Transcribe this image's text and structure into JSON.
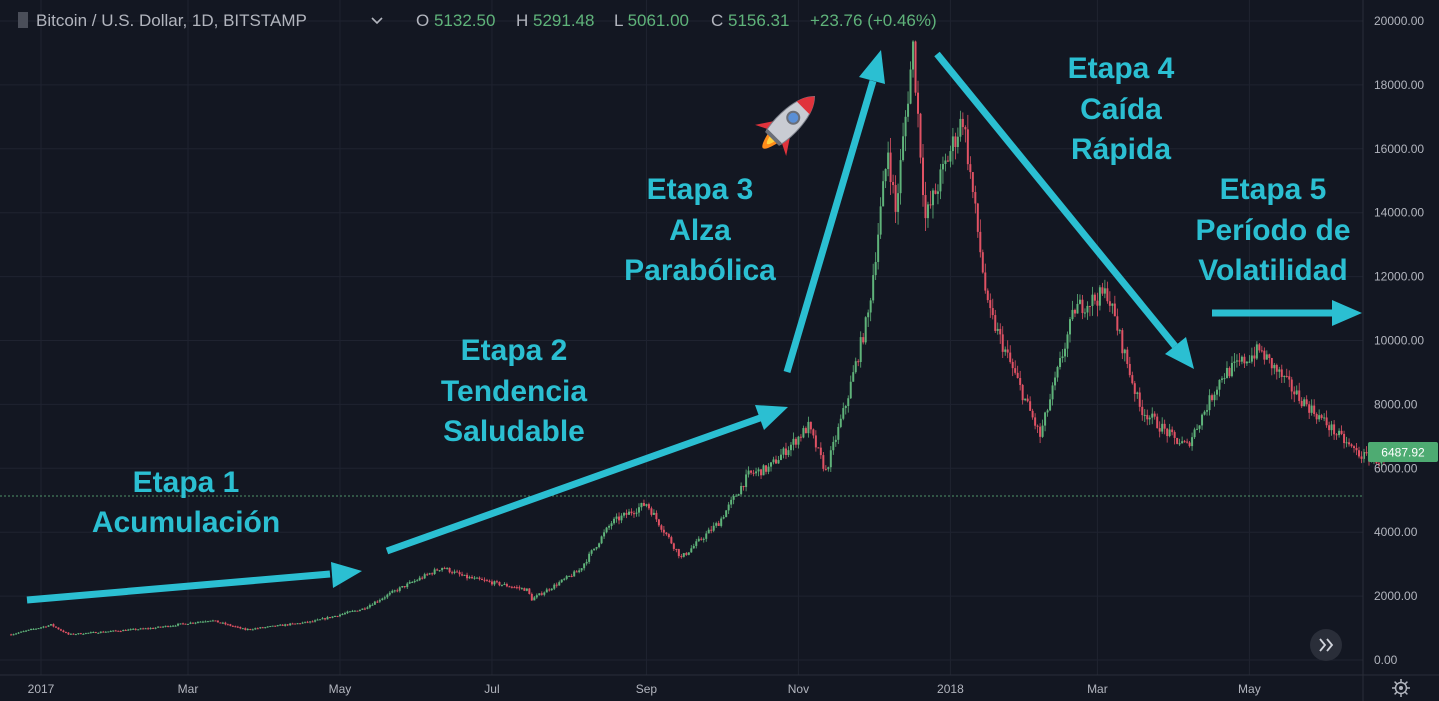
{
  "header": {
    "symbol": "Bitcoin / U.S. Dollar, 1D, BITSTAMP",
    "o_label": "O",
    "o_value": "5132.50",
    "h_label": "H",
    "h_value": "5291.48",
    "l_label": "L",
    "l_value": "5061.00",
    "c_label": "C",
    "c_value": "5156.31",
    "change": "+23.76 (+0.46%)"
  },
  "colors": {
    "background": "#131722",
    "up": "#5fb37a",
    "down": "#e05264",
    "annotation": "#2bbfd2",
    "text": "#b2b5be",
    "price_tag": "#4eab72"
  },
  "chart_data": {
    "type": "line",
    "title": "",
    "xlabel": "",
    "ylabel": "",
    "x_ticks": [
      "2017",
      "Mar",
      "May",
      "Jul",
      "Sep",
      "Nov",
      "2018",
      "Mar",
      "May"
    ],
    "y_ticks": [
      "20000.00",
      "18000.00",
      "16000.00",
      "14000.00",
      "12000.00",
      "10000.00",
      "8000.00",
      "6000.00",
      "4000.00",
      "2000.00",
      "0.00"
    ],
    "ylim": [
      0,
      20000
    ],
    "grid": true,
    "last_price": "6487.92",
    "reference_line": 5132.5,
    "series": [
      {
        "values": [
          {
            "x": "2016-12-20",
            "y": 800
          },
          {
            "x": "2017-01-05",
            "y": 1100
          },
          {
            "x": "2017-01-12",
            "y": 800
          },
          {
            "x": "2017-02-15",
            "y": 1000
          },
          {
            "x": "2017-03-10",
            "y": 1250
          },
          {
            "x": "2017-03-24",
            "y": 950
          },
          {
            "x": "2017-04-20",
            "y": 1200
          },
          {
            "x": "2017-05-10",
            "y": 1600
          },
          {
            "x": "2017-05-24",
            "y": 2200
          },
          {
            "x": "2017-06-11",
            "y": 2900
          },
          {
            "x": "2017-06-20",
            "y": 2600
          },
          {
            "x": "2017-07-15",
            "y": 2200
          },
          {
            "x": "2017-07-17",
            "y": 1900
          },
          {
            "x": "2017-08-05",
            "y": 2800
          },
          {
            "x": "2017-08-18",
            "y": 4300
          },
          {
            "x": "2017-09-01",
            "y": 4900
          },
          {
            "x": "2017-09-15",
            "y": 3200
          },
          {
            "x": "2017-09-30",
            "y": 4300
          },
          {
            "x": "2017-10-12",
            "y": 5800
          },
          {
            "x": "2017-10-20",
            "y": 6000
          },
          {
            "x": "2017-11-05",
            "y": 7300
          },
          {
            "x": "2017-11-12",
            "y": 5900
          },
          {
            "x": "2017-11-20",
            "y": 8000
          },
          {
            "x": "2017-11-29",
            "y": 10800
          },
          {
            "x": "2017-12-07",
            "y": 16000
          },
          {
            "x": "2017-12-10",
            "y": 14000
          },
          {
            "x": "2017-12-17",
            "y": 19200
          },
          {
            "x": "2017-12-22",
            "y": 13800
          },
          {
            "x": "2018-01-06",
            "y": 17000
          },
          {
            "x": "2018-01-16",
            "y": 11000
          },
          {
            "x": "2018-02-06",
            "y": 7000
          },
          {
            "x": "2018-02-20",
            "y": 11000
          },
          {
            "x": "2018-03-05",
            "y": 11500
          },
          {
            "x": "2018-03-18",
            "y": 7900
          },
          {
            "x": "2018-04-01",
            "y": 6900
          },
          {
            "x": "2018-04-06",
            "y": 6700
          },
          {
            "x": "2018-04-20",
            "y": 8900
          },
          {
            "x": "2018-05-05",
            "y": 9700
          },
          {
            "x": "2018-05-20",
            "y": 8300
          },
          {
            "x": "2018-06-10",
            "y": 6700
          },
          {
            "x": "2018-06-15",
            "y": 6400
          },
          {
            "x": "2018-06-24",
            "y": 6200
          }
        ]
      }
    ],
    "annotations": [
      {
        "line1": "Etapa 1",
        "line2": "Acumulación",
        "line3": ""
      },
      {
        "line1": "Etapa 2",
        "line2": "Tendencia",
        "line3": "Saludable"
      },
      {
        "line1": "Etapa 3",
        "line2": "Alza",
        "line3": "Parabólica"
      },
      {
        "line1": "Etapa 4",
        "line2": "Caída",
        "line3": "Rápida"
      },
      {
        "line1": "Etapa 5",
        "line2": "Período de",
        "line3": "Volatilidad"
      }
    ]
  }
}
